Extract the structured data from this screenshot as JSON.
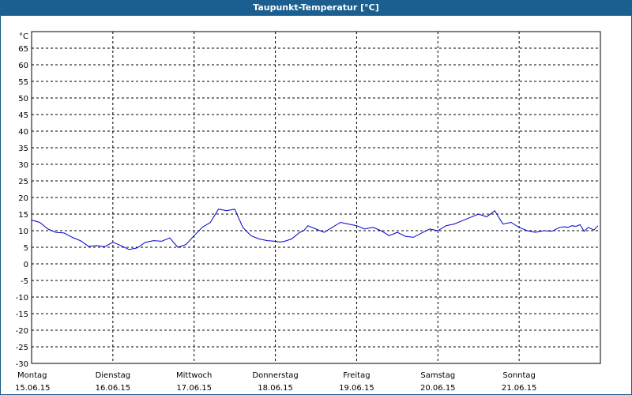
{
  "window": {
    "title": "Taupunkt-Temperatur [°C]"
  },
  "chart_data": {
    "type": "line",
    "title": "Taupunkt-Temperatur [°C]",
    "ylabel": "°C",
    "ylim": [
      -30,
      70
    ],
    "yticks": [
      65,
      60,
      55,
      50,
      45,
      40,
      35,
      30,
      25,
      20,
      15,
      10,
      5,
      0,
      -5,
      -10,
      -15,
      -20,
      -25,
      -30
    ],
    "grid": true,
    "x_unit": "days since 15.06.15 00:00",
    "xlim": [
      0,
      7
    ],
    "day_labels": [
      {
        "day": "Montag",
        "date": "15.06.15"
      },
      {
        "day": "Dienstag",
        "date": "16.06.15"
      },
      {
        "day": "Mittwoch",
        "date": "17.06.15"
      },
      {
        "day": "Donnerstag",
        "date": "18.06.15"
      },
      {
        "day": "Freitag",
        "date": "19.06.15"
      },
      {
        "day": "Samstag",
        "date": "20.06.15"
      },
      {
        "day": "Sonntag",
        "date": "21.06.15"
      }
    ],
    "series": [
      {
        "color": "#0000cc",
        "x": [
          0.0,
          0.1,
          0.2,
          0.3,
          0.4,
          0.5,
          0.6,
          0.7,
          0.8,
          0.9,
          1.0,
          1.1,
          1.2,
          1.3,
          1.4,
          1.5,
          1.6,
          1.7,
          1.8,
          1.9,
          2.0,
          2.1,
          2.2,
          2.3,
          2.4,
          2.5,
          2.6,
          2.7,
          2.8,
          2.9,
          3.0,
          3.05,
          3.1,
          3.2,
          3.3,
          3.35,
          3.4,
          3.5,
          3.6,
          3.7,
          3.8,
          3.9,
          4.0,
          4.1,
          4.2,
          4.3,
          4.4,
          4.5,
          4.6,
          4.7,
          4.8,
          4.9,
          5.0,
          5.1,
          5.2,
          5.3,
          5.4,
          5.5,
          5.6,
          5.7,
          5.8,
          5.9,
          6.0,
          6.1,
          6.2,
          6.3,
          6.4,
          6.5,
          6.55,
          6.6,
          6.65,
          6.7,
          6.75,
          6.8,
          6.85,
          6.92,
          6.97
        ],
        "values": [
          13.2,
          12.5,
          10.5,
          9.5,
          9.3,
          8.0,
          7.0,
          5.3,
          5.5,
          5.2,
          6.5,
          5.5,
          4.3,
          4.8,
          6.5,
          7.0,
          6.8,
          7.8,
          5.0,
          5.8,
          8.5,
          11.0,
          12.5,
          16.5,
          16.0,
          16.5,
          11.0,
          8.5,
          7.5,
          7.0,
          6.8,
          6.6,
          6.7,
          7.5,
          9.5,
          10.0,
          11.5,
          10.5,
          9.5,
          11.0,
          12.5,
          12.0,
          11.5,
          10.5,
          11.0,
          10.0,
          8.5,
          9.5,
          8.3,
          8.0,
          9.3,
          10.5,
          10.0,
          11.5,
          12.0,
          13.0,
          14.0,
          15.0,
          14.2,
          16.0,
          12.0,
          12.5,
          11.0,
          10.0,
          9.5,
          10.0,
          9.8,
          11.0,
          11.2,
          11.0,
          11.5,
          11.3,
          11.8,
          9.8,
          11.0,
          10.2,
          11.5
        ]
      }
    ]
  }
}
